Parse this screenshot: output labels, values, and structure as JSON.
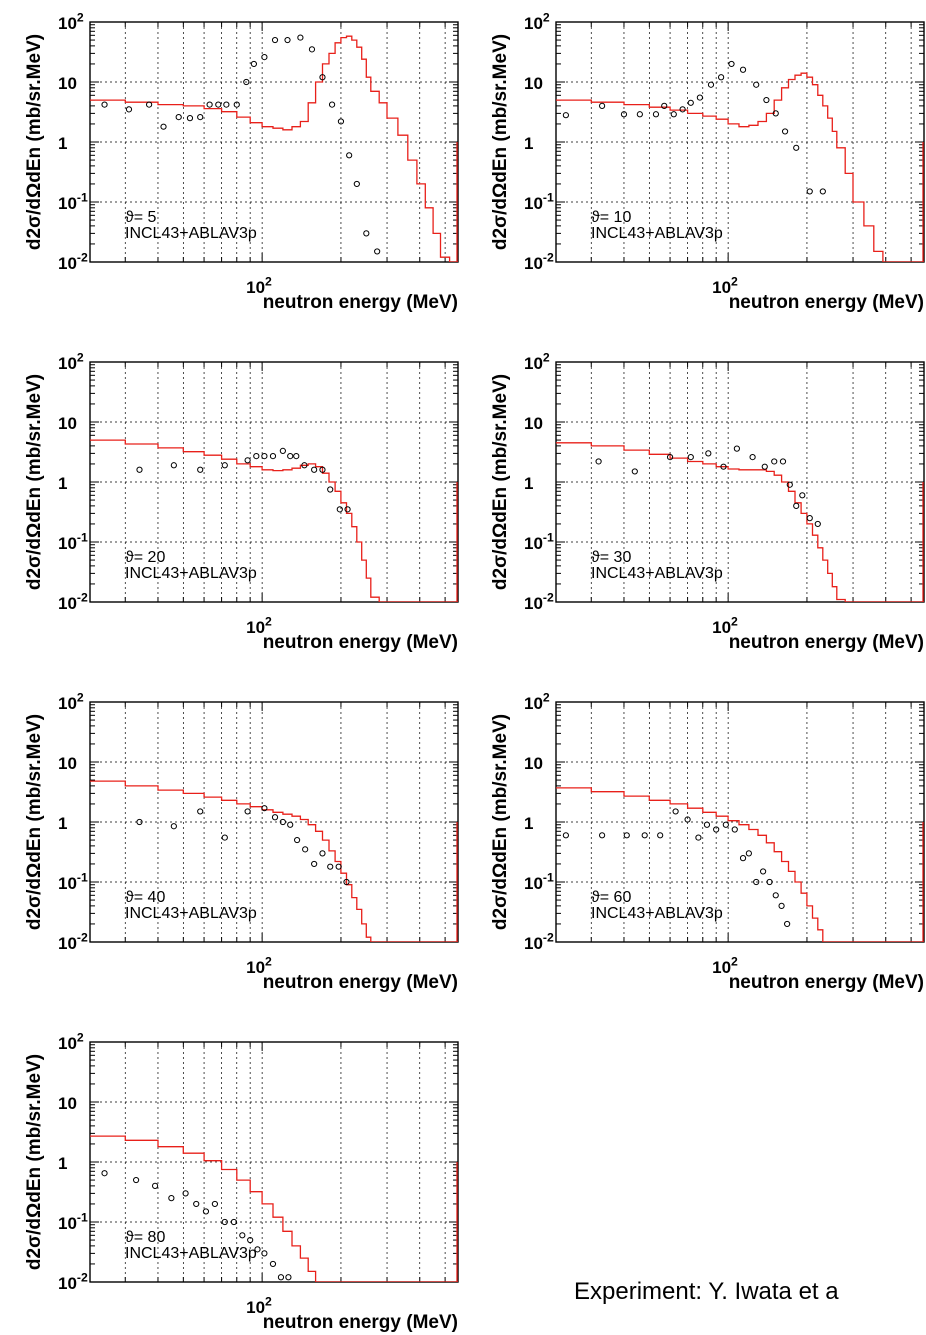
{
  "footer_note": "Experiment: Y. Iwata et a",
  "chart_data": [
    {
      "type": "line",
      "x_scale": "log",
      "y_scale": "log",
      "xlim": [
        22,
        560
      ],
      "ylim": [
        0.01,
        100
      ],
      "grid": true,
      "xlabel": "neutron energy (MeV)",
      "ylabel": "d2σ/dΩdEn (mb/sr.MeV)",
      "x_tick_label": "10^2",
      "y_tick_labels": [
        "10^2",
        "10",
        "1",
        "10^-1",
        "10^-2"
      ],
      "annotation": [
        "ϑ= 5",
        "INCL43+ABLAV3p"
      ],
      "series": [
        {
          "name": "INCL43+ABLAV3p",
          "kind": "histogram",
          "x": [
            22,
            30,
            40,
            50,
            60,
            70,
            80,
            90,
            100,
            110,
            120,
            130,
            140,
            150,
            160,
            170,
            180,
            190,
            200,
            210,
            220,
            230,
            240,
            250,
            260,
            280,
            300,
            330,
            360,
            390,
            420,
            450,
            480,
            520,
            560
          ],
          "y": [
            5,
            4.6,
            4.2,
            4.0,
            3.6,
            3.2,
            2.6,
            2.1,
            1.8,
            1.7,
            1.6,
            1.8,
            2.2,
            4.5,
            10,
            20,
            30,
            45,
            55,
            58,
            50,
            38,
            24,
            12,
            7,
            4.5,
            2.5,
            1.3,
            0.5,
            0.2,
            0.08,
            0.03,
            0.012,
            0.01,
            0.01
          ]
        },
        {
          "name": "",
          "kind": "points",
          "x": [
            25,
            31,
            37,
            42,
            48,
            53,
            58,
            63,
            68,
            73,
            80,
            87,
            93,
            102,
            112,
            125,
            140,
            155,
            170,
            185,
            200,
            215,
            230,
            250,
            275,
            305,
            335
          ],
          "y": [
            4.2,
            3.5,
            4.2,
            1.8,
            2.6,
            2.5,
            2.6,
            4.2,
            4.2,
            4.2,
            4.2,
            10,
            20,
            26,
            50,
            50,
            55,
            35,
            12,
            4.2,
            2.2,
            0.6,
            0.2,
            0.03,
            0.015,
            0.01,
            0.01
          ]
        }
      ]
    },
    {
      "type": "line",
      "x_scale": "log",
      "y_scale": "log",
      "xlim": [
        22,
        560
      ],
      "ylim": [
        0.01,
        100
      ],
      "grid": true,
      "xlabel": "neutron energy (MeV)",
      "ylabel": "d2σ/dΩdEn (mb/sr.MeV)",
      "x_tick_label": "10^2",
      "y_tick_labels": [
        "10^2",
        "10",
        "1",
        "10^-1",
        "10^-2"
      ],
      "annotation": [
        "ϑ= 10",
        "INCL43+ABLAV3p"
      ],
      "series": [
        {
          "name": "INCL43+ABLAV3p",
          "kind": "histogram",
          "x": [
            22,
            30,
            40,
            50,
            60,
            70,
            80,
            90,
            100,
            110,
            120,
            130,
            140,
            150,
            160,
            170,
            180,
            190,
            200,
            210,
            220,
            230,
            240,
            250,
            260,
            280,
            300,
            330,
            360,
            390,
            420,
            450,
            480,
            520,
            560
          ],
          "y": [
            5,
            4.6,
            4.2,
            3.8,
            3.4,
            3.0,
            2.7,
            2.4,
            2.0,
            1.8,
            1.9,
            2.2,
            3.0,
            5.0,
            8.0,
            11,
            13,
            14,
            12,
            9,
            6,
            4,
            2.5,
            1.5,
            0.8,
            0.3,
            0.1,
            0.04,
            0.015,
            0.01,
            0.01,
            0.01,
            0.01,
            0.01,
            0.01
          ]
        },
        {
          "name": "",
          "kind": "points",
          "x": [
            24,
            33,
            40,
            46,
            53,
            57,
            62,
            67,
            72,
            78,
            86,
            94,
            103,
            114,
            128,
            140,
            152,
            165,
            182,
            205,
            230,
            260
          ],
          "y": [
            2.8,
            4.0,
            2.9,
            2.9,
            2.9,
            4.0,
            2.9,
            3.5,
            4.5,
            5.5,
            9,
            12,
            20,
            16,
            9,
            5,
            3,
            1.5,
            0.8,
            0.15,
            0.15,
            0.01
          ]
        }
      ]
    },
    {
      "type": "line",
      "x_scale": "log",
      "y_scale": "log",
      "xlim": [
        22,
        560
      ],
      "ylim": [
        0.01,
        100
      ],
      "grid": true,
      "xlabel": "neutron energy (MeV)",
      "ylabel": "d2σ/dΩdEn (mb/sr.MeV)",
      "x_tick_label": "10^2",
      "y_tick_labels": [
        "10^2",
        "10",
        "1",
        "10^-1",
        "10^-2"
      ],
      "annotation": [
        "ϑ= 20",
        "INCL43+ABLAV3p"
      ],
      "series": [
        {
          "name": "INCL43+ABLAV3p",
          "kind": "histogram",
          "x": [
            22,
            30,
            40,
            50,
            60,
            70,
            80,
            90,
            100,
            110,
            120,
            130,
            140,
            150,
            160,
            170,
            180,
            190,
            200,
            210,
            220,
            230,
            240,
            250,
            260,
            280,
            300,
            330,
            360,
            390,
            420,
            450,
            480,
            520,
            560
          ],
          "y": [
            5,
            4.3,
            3.7,
            3.2,
            2.8,
            2.4,
            2.0,
            1.8,
            1.6,
            1.55,
            1.6,
            1.7,
            1.9,
            2.0,
            1.8,
            1.4,
            1.0,
            0.7,
            0.45,
            0.3,
            0.18,
            0.1,
            0.05,
            0.025,
            0.012,
            0.01,
            0.01,
            0.01,
            0.01,
            0.01,
            0.01,
            0.01,
            0.01,
            0.01,
            0.01
          ]
        },
        {
          "name": "",
          "kind": "points",
          "x": [
            34,
            46,
            58,
            72,
            88,
            95,
            102,
            110,
            120,
            128,
            135,
            145,
            158,
            170,
            182,
            198,
            212
          ],
          "y": [
            1.6,
            1.9,
            1.6,
            1.9,
            2.3,
            2.7,
            2.7,
            2.7,
            3.3,
            2.7,
            2.7,
            1.9,
            1.6,
            1.6,
            0.75,
            0.35,
            0.35
          ]
        }
      ]
    },
    {
      "type": "line",
      "x_scale": "log",
      "y_scale": "log",
      "xlim": [
        22,
        560
      ],
      "ylim": [
        0.01,
        100
      ],
      "grid": true,
      "xlabel": "neutron energy (MeV)",
      "ylabel": "d2σ/dΩdEn (mb/sr.MeV)",
      "x_tick_label": "10^2",
      "y_tick_labels": [
        "10^2",
        "10",
        "1",
        "10^-1",
        "10^-2"
      ],
      "annotation": [
        "ϑ= 30",
        "INCL43+ABLAV3p"
      ],
      "series": [
        {
          "name": "INCL43+ABLAV3p",
          "kind": "histogram",
          "x": [
            22,
            30,
            40,
            50,
            60,
            70,
            80,
            90,
            100,
            110,
            120,
            130,
            140,
            150,
            160,
            170,
            180,
            190,
            200,
            210,
            220,
            230,
            240,
            250,
            260,
            280,
            300,
            330,
            360,
            390,
            420,
            450,
            480,
            520,
            560
          ],
          "y": [
            4.5,
            4.0,
            3.4,
            2.9,
            2.5,
            2.2,
            2.0,
            1.8,
            1.65,
            1.6,
            1.6,
            1.6,
            1.5,
            1.3,
            1.0,
            0.7,
            0.45,
            0.3,
            0.2,
            0.13,
            0.08,
            0.05,
            0.03,
            0.018,
            0.011,
            0.01,
            0.01,
            0.01,
            0.01,
            0.01,
            0.01,
            0.01,
            0.01,
            0.01,
            0.01
          ]
        },
        {
          "name": "",
          "kind": "points",
          "x": [
            32,
            44,
            60,
            72,
            84,
            96,
            108,
            124,
            138,
            150,
            162,
            172,
            182,
            192,
            205,
            220
          ],
          "y": [
            2.2,
            1.5,
            2.6,
            2.6,
            3.0,
            1.8,
            3.6,
            2.6,
            1.8,
            2.2,
            2.2,
            0.9,
            0.4,
            0.6,
            0.25,
            0.2
          ]
        }
      ]
    },
    {
      "type": "line",
      "x_scale": "log",
      "y_scale": "log",
      "xlim": [
        22,
        560
      ],
      "ylim": [
        0.01,
        100
      ],
      "grid": true,
      "xlabel": "neutron energy (MeV)",
      "ylabel": "d2σ/dΩdEn (mb/sr.MeV)",
      "x_tick_label": "10^2",
      "y_tick_labels": [
        "10^2",
        "10",
        "1",
        "10^-1",
        "10^-2"
      ],
      "annotation": [
        "ϑ= 40",
        "INCL43+ABLAV3p"
      ],
      "series": [
        {
          "name": "INCL43+ABLAV3p",
          "kind": "histogram",
          "x": [
            22,
            30,
            40,
            50,
            60,
            70,
            80,
            90,
            100,
            110,
            120,
            130,
            140,
            150,
            160,
            170,
            180,
            190,
            200,
            210,
            220,
            230,
            240,
            250,
            260,
            280,
            300,
            330,
            360,
            390,
            420,
            450,
            480,
            520,
            560
          ],
          "y": [
            4.8,
            4.0,
            3.4,
            3.0,
            2.6,
            2.3,
            2.0,
            1.8,
            1.6,
            1.45,
            1.35,
            1.25,
            1.1,
            0.9,
            0.7,
            0.5,
            0.33,
            0.22,
            0.14,
            0.09,
            0.055,
            0.035,
            0.02,
            0.012,
            0.01,
            0.01,
            0.01,
            0.01,
            0.01,
            0.01,
            0.01,
            0.01,
            0.01,
            0.01,
            0.01
          ]
        },
        {
          "name": "",
          "kind": "points",
          "x": [
            34,
            46,
            58,
            72,
            88,
            102,
            112,
            120,
            128,
            136,
            146,
            158,
            170,
            182,
            196,
            210
          ],
          "y": [
            1.0,
            0.85,
            1.5,
            0.55,
            1.5,
            1.7,
            1.2,
            1.0,
            0.9,
            0.5,
            0.35,
            0.2,
            0.3,
            0.18,
            0.18,
            0.1
          ]
        }
      ]
    },
    {
      "type": "line",
      "x_scale": "log",
      "y_scale": "log",
      "xlim": [
        22,
        560
      ],
      "ylim": [
        0.01,
        100
      ],
      "grid": true,
      "xlabel": "neutron energy (MeV)",
      "ylabel": "d2σ/dΩdEn (mb/sr.MeV)",
      "x_tick_label": "10^2",
      "y_tick_labels": [
        "10^2",
        "10",
        "1",
        "10^-1",
        "10^-2"
      ],
      "annotation": [
        "ϑ= 60",
        "INCL43+ABLAV3p"
      ],
      "series": [
        {
          "name": "INCL43+ABLAV3p",
          "kind": "histogram",
          "x": [
            22,
            30,
            40,
            50,
            60,
            70,
            80,
            90,
            100,
            110,
            120,
            130,
            140,
            150,
            160,
            170,
            180,
            190,
            200,
            210,
            220,
            230,
            240,
            250,
            260,
            280,
            300,
            330,
            360,
            390,
            420,
            450,
            480,
            520,
            560
          ],
          "y": [
            3.7,
            3.2,
            2.7,
            2.3,
            2.0,
            1.7,
            1.45,
            1.25,
            1.05,
            0.9,
            0.75,
            0.6,
            0.45,
            0.32,
            0.22,
            0.15,
            0.1,
            0.065,
            0.04,
            0.025,
            0.016,
            0.01,
            0.01,
            0.01,
            0.01,
            0.01,
            0.01,
            0.01,
            0.01,
            0.01,
            0.01,
            0.01,
            0.01,
            0.01,
            0.01
          ]
        },
        {
          "name": "",
          "kind": "points",
          "x": [
            24,
            33,
            41,
            48,
            55,
            63,
            70,
            77,
            83,
            90,
            98,
            106,
            114,
            120,
            128,
            136,
            144,
            152,
            160,
            168
          ],
          "y": [
            0.6,
            0.6,
            0.6,
            0.6,
            0.6,
            1.5,
            1.1,
            0.55,
            0.9,
            0.75,
            0.9,
            0.75,
            0.25,
            0.3,
            0.1,
            0.15,
            0.1,
            0.06,
            0.04,
            0.02
          ]
        }
      ]
    },
    {
      "type": "line",
      "x_scale": "log",
      "y_scale": "log",
      "xlim": [
        22,
        560
      ],
      "ylim": [
        0.01,
        100
      ],
      "grid": true,
      "xlabel": "neutron energy (MeV)",
      "ylabel": "d2σ/dΩdEn (mb/sr.MeV)",
      "x_tick_label": "10^2",
      "y_tick_labels": [
        "10^2",
        "10",
        "1",
        "10^-1",
        "10^-2"
      ],
      "annotation": [
        "ϑ= 80",
        "INCL43+ABLAV3p"
      ],
      "series": [
        {
          "name": "INCL43+ABLAV3p",
          "kind": "histogram",
          "x": [
            22,
            30,
            40,
            50,
            60,
            70,
            80,
            90,
            100,
            110,
            120,
            130,
            140,
            150,
            160,
            170,
            180,
            190,
            200,
            210,
            220,
            230,
            240,
            250,
            260,
            280,
            300,
            330,
            360,
            390,
            420,
            450,
            480,
            520,
            560
          ],
          "y": [
            2.7,
            2.3,
            1.8,
            1.4,
            1.05,
            0.75,
            0.5,
            0.32,
            0.2,
            0.12,
            0.07,
            0.04,
            0.025,
            0.015,
            0.01,
            0.01,
            0.01,
            0.01,
            0.01,
            0.01,
            0.01,
            0.01,
            0.01,
            0.01,
            0.01,
            0.01,
            0.01,
            0.01,
            0.01,
            0.01,
            0.01,
            0.01,
            0.01,
            0.01,
            0.01
          ]
        },
        {
          "name": "",
          "kind": "points",
          "x": [
            25,
            33,
            39,
            45,
            51,
            56,
            61,
            66,
            72,
            78,
            84,
            90,
            96,
            102,
            110,
            118,
            126,
            134
          ],
          "y": [
            0.65,
            0.5,
            0.4,
            0.25,
            0.3,
            0.2,
            0.15,
            0.2,
            0.1,
            0.1,
            0.06,
            0.05,
            0.035,
            0.03,
            0.02,
            0.012,
            0.012,
            0.01
          ]
        }
      ]
    }
  ]
}
